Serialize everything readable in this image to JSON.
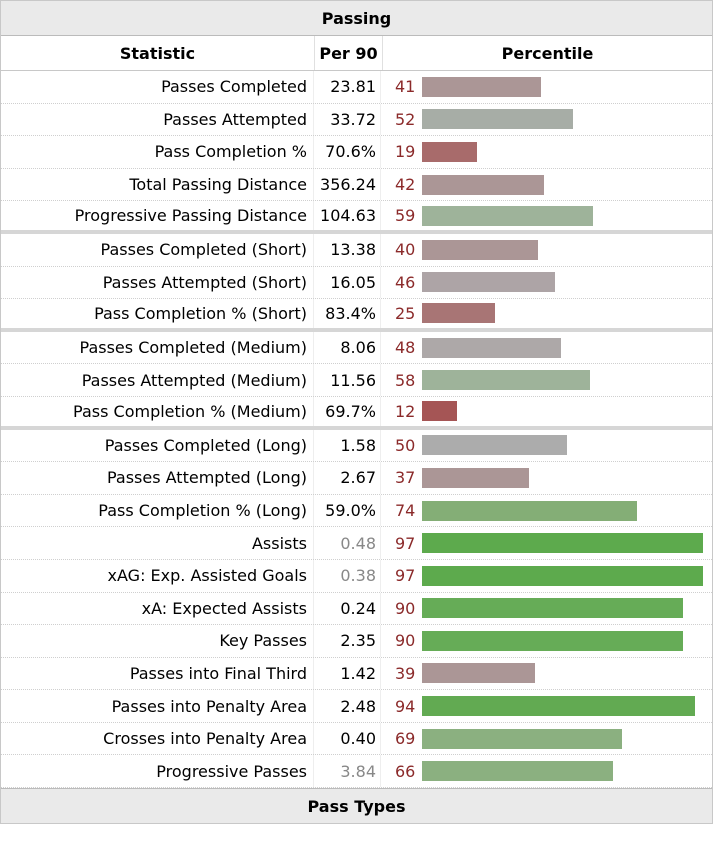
{
  "table": {
    "title": "Passing",
    "headers": {
      "statistic": "Statistic",
      "per90": "Per 90",
      "percentile": "Percentile"
    },
    "footer": "Pass Types",
    "rows": [
      {
        "stat": "Passes Completed",
        "per90": "23.81",
        "pct": "41",
        "percentile": 41,
        "color": "#ab9696",
        "sep": false,
        "dim": false
      },
      {
        "stat": "Passes Attempted",
        "per90": "33.72",
        "pct": "52",
        "percentile": 52,
        "color": "#a7ada6",
        "sep": false,
        "dim": false
      },
      {
        "stat": "Pass Completion %",
        "per90": "70.6%",
        "pct": "19",
        "percentile": 19,
        "color": "#a86b6b",
        "sep": false,
        "dim": false
      },
      {
        "stat": "Total Passing Distance",
        "per90": "356.24",
        "pct": "42",
        "percentile": 42,
        "color": "#ab9696",
        "sep": false,
        "dim": false
      },
      {
        "stat": "Progressive Passing Distance",
        "per90": "104.63",
        "pct": "59",
        "percentile": 59,
        "color": "#9eb39a",
        "sep": true,
        "dim": false
      },
      {
        "stat": "Passes Completed (Short)",
        "per90": "13.38",
        "pct": "40",
        "percentile": 40,
        "color": "#ab9696",
        "sep": false,
        "dim": false
      },
      {
        "stat": "Passes Attempted (Short)",
        "per90": "16.05",
        "pct": "46",
        "percentile": 46,
        "color": "#ada4a6",
        "sep": false,
        "dim": false
      },
      {
        "stat": "Pass Completion % (Short)",
        "per90": "83.4%",
        "pct": "25",
        "percentile": 25,
        "color": "#a87575",
        "sep": true,
        "dim": false
      },
      {
        "stat": "Passes Completed (Medium)",
        "per90": "8.06",
        "pct": "48",
        "percentile": 48,
        "color": "#ada8a8",
        "sep": false,
        "dim": false
      },
      {
        "stat": "Passes Attempted (Medium)",
        "per90": "11.56",
        "pct": "58",
        "percentile": 58,
        "color": "#9eb39a",
        "sep": false,
        "dim": false
      },
      {
        "stat": "Pass Completion % (Medium)",
        "per90": "69.7%",
        "pct": "12",
        "percentile": 12,
        "color": "#a55555",
        "sep": true,
        "dim": false
      },
      {
        "stat": "Passes Completed (Long)",
        "per90": "1.58",
        "pct": "50",
        "percentile": 50,
        "color": "#acacac",
        "sep": false,
        "dim": false
      },
      {
        "stat": "Passes Attempted (Long)",
        "per90": "2.67",
        "pct": "37",
        "percentile": 37,
        "color": "#ab9696",
        "sep": false,
        "dim": false
      },
      {
        "stat": "Pass Completion % (Long)",
        "per90": "59.0%",
        "pct": "74",
        "percentile": 74,
        "color": "#84ae76",
        "sep": false,
        "dim": false
      },
      {
        "stat": "Assists",
        "per90": "0.48",
        "pct": "97",
        "percentile": 97,
        "color": "#5daa4d",
        "sep": false,
        "dim": true
      },
      {
        "stat": "xAG: Exp. Assisted Goals",
        "per90": "0.38",
        "pct": "97",
        "percentile": 97,
        "color": "#5daa4d",
        "sep": false,
        "dim": true
      },
      {
        "stat": "xA: Expected Assists",
        "per90": "0.24",
        "pct": "90",
        "percentile": 90,
        "color": "#66ac57",
        "sep": false,
        "dim": false
      },
      {
        "stat": "Key Passes",
        "per90": "2.35",
        "pct": "90",
        "percentile": 90,
        "color": "#66ac57",
        "sep": false,
        "dim": false
      },
      {
        "stat": "Passes into Final Third",
        "per90": "1.42",
        "pct": "39",
        "percentile": 39,
        "color": "#ab9696",
        "sep": false,
        "dim": false
      },
      {
        "stat": "Passes into Penalty Area",
        "per90": "2.48",
        "pct": "94",
        "percentile": 94,
        "color": "#62aa52",
        "sep": false,
        "dim": false
      },
      {
        "stat": "Crosses into Penalty Area",
        "per90": "0.40",
        "pct": "69",
        "percentile": 69,
        "color": "#8bb080",
        "sep": false,
        "dim": false
      },
      {
        "stat": "Progressive Passes",
        "per90": "3.84",
        "pct": "66",
        "percentile": 66,
        "color": "#8bb080",
        "sep": false,
        "dim": true
      }
    ]
  }
}
